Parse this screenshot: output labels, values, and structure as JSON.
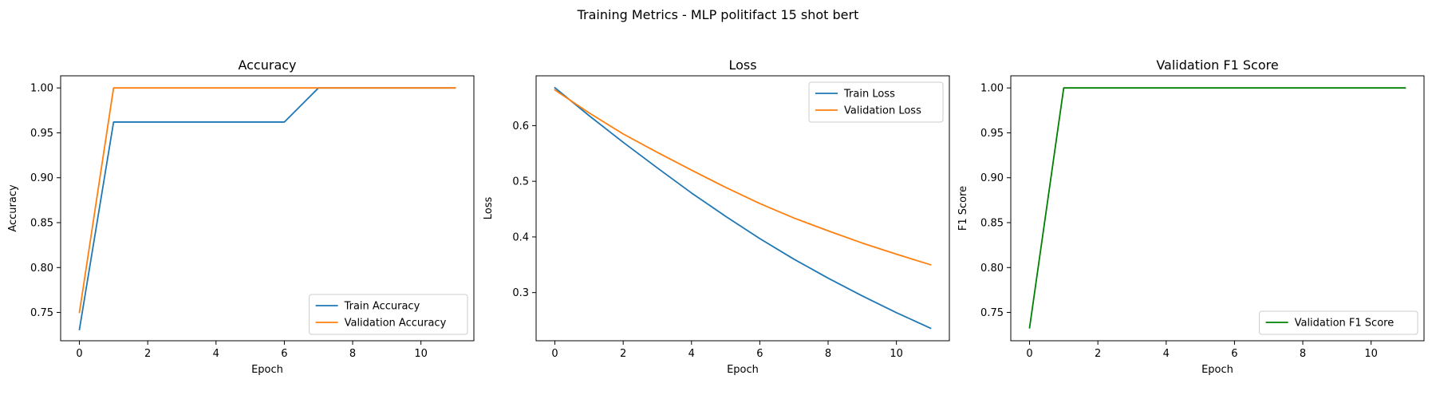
{
  "figure": {
    "suptitle": "Training Metrics - MLP politifact 15 shot bert"
  },
  "chart_data": [
    {
      "type": "line",
      "title": "Accuracy",
      "xlabel": "Epoch",
      "ylabel": "Accuracy",
      "xlim": [
        -0.55,
        11.55
      ],
      "ylim": [
        0.7185,
        1.0135
      ],
      "xticks": [
        0,
        2,
        4,
        6,
        8,
        10
      ],
      "yticks": [
        0.75,
        0.8,
        0.85,
        0.9,
        0.95,
        1.0
      ],
      "ytick_labels": [
        "0.75",
        "0.80",
        "0.85",
        "0.90",
        "0.95",
        "1.00"
      ],
      "legend_loc": "lower-right",
      "x": [
        0,
        1,
        2,
        3,
        4,
        5,
        6,
        7,
        8,
        9,
        10,
        11
      ],
      "series": [
        {
          "name": "Train Accuracy",
          "color": "#1f77b4",
          "values": [
            0.731,
            0.962,
            0.962,
            0.962,
            0.962,
            0.962,
            0.962,
            1.0,
            1.0,
            1.0,
            1.0,
            1.0
          ]
        },
        {
          "name": "Validation Accuracy",
          "color": "#ff7f0e",
          "values": [
            0.75,
            1.0,
            1.0,
            1.0,
            1.0,
            1.0,
            1.0,
            1.0,
            1.0,
            1.0,
            1.0,
            1.0
          ]
        }
      ]
    },
    {
      "type": "line",
      "title": "Loss",
      "xlabel": "Epoch",
      "ylabel": "Loss",
      "xlim": [
        -0.55,
        11.55
      ],
      "ylim": [
        0.2135,
        0.6895
      ],
      "xticks": [
        0,
        2,
        4,
        6,
        8,
        10
      ],
      "yticks": [
        0.3,
        0.4,
        0.5,
        0.6
      ],
      "ytick_labels": [
        "0.3",
        "0.4",
        "0.5",
        "0.6"
      ],
      "legend_loc": "upper-right",
      "x": [
        0,
        1,
        2,
        3,
        4,
        5,
        6,
        7,
        8,
        9,
        10,
        11
      ],
      "series": [
        {
          "name": "Train Loss",
          "color": "#1f77b4",
          "values": [
            0.668,
            0.618,
            0.57,
            0.524,
            0.479,
            0.437,
            0.397,
            0.36,
            0.326,
            0.294,
            0.264,
            0.236
          ]
        },
        {
          "name": "Validation Loss",
          "color": "#ff7f0e",
          "values": [
            0.664,
            0.623,
            0.585,
            0.552,
            0.52,
            0.489,
            0.46,
            0.434,
            0.411,
            0.389,
            0.369,
            0.35
          ]
        }
      ]
    },
    {
      "type": "line",
      "title": "Validation F1 Score",
      "xlabel": "Epoch",
      "ylabel": "F1 Score",
      "xlim": [
        -0.55,
        11.55
      ],
      "ylim": [
        0.7185,
        1.0135
      ],
      "xticks": [
        0,
        2,
        4,
        6,
        8,
        10
      ],
      "yticks": [
        0.75,
        0.8,
        0.85,
        0.9,
        0.95,
        1.0
      ],
      "ytick_labels": [
        "0.75",
        "0.80",
        "0.85",
        "0.90",
        "0.95",
        "1.00"
      ],
      "legend_loc": "lower-right",
      "x": [
        0,
        1,
        2,
        3,
        4,
        5,
        6,
        7,
        8,
        9,
        10,
        11
      ],
      "series": [
        {
          "name": "Validation F1 Score",
          "color": "#008000",
          "values": [
            0.733,
            1.0,
            1.0,
            1.0,
            1.0,
            1.0,
            1.0,
            1.0,
            1.0,
            1.0,
            1.0,
            1.0
          ]
        }
      ]
    }
  ]
}
